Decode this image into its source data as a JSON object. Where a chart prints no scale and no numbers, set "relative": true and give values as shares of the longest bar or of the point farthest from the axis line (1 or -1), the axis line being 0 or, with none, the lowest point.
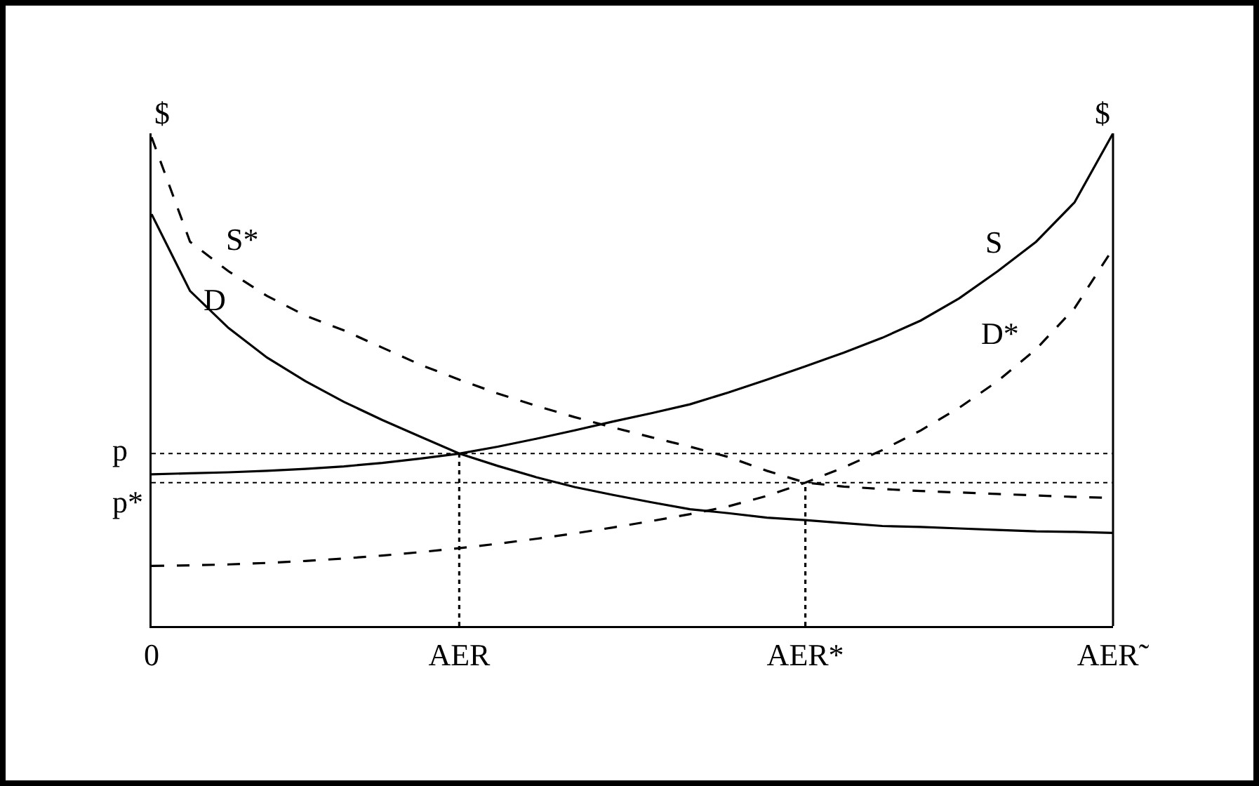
{
  "chart_data": {
    "type": "line",
    "relative": true,
    "ylabel": "$",
    "y2label": "$",
    "categories": [
      "0",
      null,
      null,
      null,
      null,
      null,
      null,
      null,
      "AER",
      null,
      null,
      null,
      null,
      null,
      null,
      null,
      null,
      "AER*",
      null,
      null,
      null,
      null,
      null,
      null,
      null,
      "AER˜"
    ],
    "grid": false,
    "legend": false,
    "series": [
      {
        "name": "D",
        "color": "#000000",
        "line_style": "solid",
        "values": [
          0.836,
          0.68,
          0.605,
          0.545,
          0.497,
          0.455,
          0.418,
          0.384,
          0.35,
          0.325,
          0.302,
          0.282,
          0.266,
          0.251,
          0.237,
          0.229,
          0.22,
          0.215,
          0.209,
          0.203,
          0.201,
          0.198,
          0.195,
          0.192,
          0.191,
          0.189
        ]
      },
      {
        "name": "S",
        "color": "#000000",
        "line_style": "solid",
        "values": [
          0.308,
          0.31,
          0.312,
          0.315,
          0.319,
          0.324,
          0.331,
          0.34,
          0.35,
          0.364,
          0.38,
          0.397,
          0.415,
          0.432,
          0.45,
          0.474,
          0.5,
          0.527,
          0.555,
          0.585,
          0.62,
          0.665,
          0.72,
          0.78,
          0.86,
          1
        ]
      },
      {
        "name": "S*",
        "color": "#000000",
        "line_style": "dashed",
        "values": [
          0.992,
          0.78,
          0.72,
          0.67,
          0.63,
          0.6,
          0.565,
          0.53,
          0.5,
          0.472,
          0.447,
          0.424,
          0.403,
          0.383,
          0.364,
          0.343,
          0.315,
          0.291,
          0.283,
          0.278,
          0.274,
          0.271,
          0.268,
          0.265,
          0.262,
          0.26
        ]
      },
      {
        "name": "D*",
        "color": "#000000",
        "line_style": "dashed",
        "values": [
          0.122,
          0.123,
          0.125,
          0.128,
          0.132,
          0.137,
          0.143,
          0.15,
          0.158,
          0.167,
          0.177,
          0.188,
          0.2,
          0.213,
          0.227,
          0.243,
          0.264,
          0.291,
          0.322,
          0.357,
          0.397,
          0.443,
          0.497,
          0.562,
          0.645,
          0.766
        ]
      },
      {
        "color": "#000000",
        "line_style": "dotted",
        "x": [
          "AER",
          "AER"
        ],
        "values": [
          0,
          0.35
        ]
      },
      {
        "color": "#000000",
        "line_style": "dotted",
        "x": [
          "AER*",
          "AER*"
        ],
        "values": [
          0,
          0.291
        ]
      }
    ],
    "ref_lines": [
      {
        "axis": "y",
        "value": 0.35,
        "label": "p",
        "line_style": "dotted",
        "color": "#000000"
      },
      {
        "axis": "y",
        "value": 0.291,
        "label": "p*",
        "line_style": "dotted",
        "color": "#000000"
      }
    ]
  }
}
